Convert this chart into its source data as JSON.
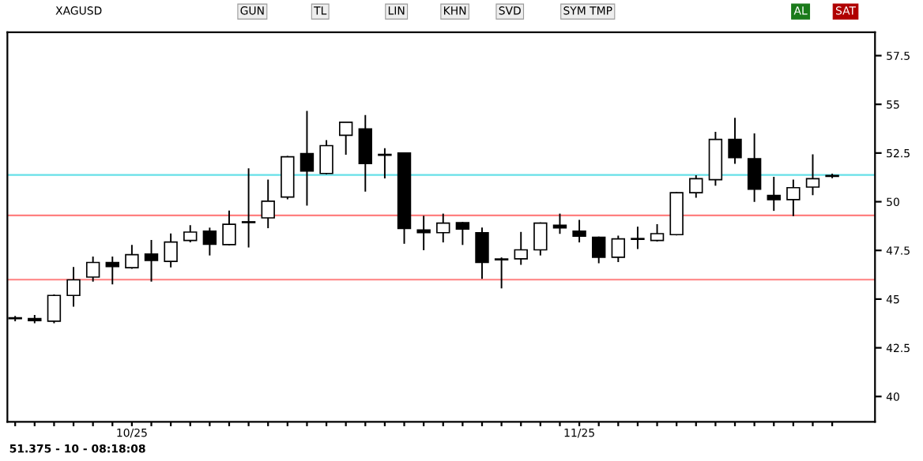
{
  "chart_data": {
    "type": "candlestick",
    "title": "XAGUSD",
    "categories": [
      null,
      null,
      null,
      null,
      null,
      null,
      "10/25",
      null,
      null,
      null,
      null,
      null,
      null,
      null,
      null,
      null,
      null,
      null,
      null,
      null,
      null,
      null,
      null,
      null,
      null,
      null,
      null,
      null,
      null,
      "11/25",
      null,
      null,
      null,
      null,
      null,
      null,
      null,
      null,
      null,
      null,
      null,
      null,
      null
    ],
    "ohlc": [
      [
        44.0,
        44.1,
        43.9,
        44.0
      ],
      [
        44.0,
        44.15,
        43.8,
        43.9
      ],
      [
        43.87,
        45.2,
        43.8,
        45.19
      ],
      [
        45.19,
        46.61,
        44.65,
        45.99
      ],
      [
        46.13,
        47.15,
        45.94,
        46.88
      ],
      [
        46.88,
        47.15,
        45.8,
        46.67
      ],
      [
        46.61,
        47.74,
        46.6,
        47.28
      ],
      [
        47.31,
        48.0,
        45.94,
        46.99
      ],
      [
        46.94,
        48.33,
        46.67,
        47.93
      ],
      [
        48.01,
        48.76,
        47.95,
        48.44
      ],
      [
        48.49,
        48.63,
        47.28,
        47.82
      ],
      [
        47.8,
        49.51,
        47.8,
        48.84
      ],
      [
        48.95,
        51.67,
        47.69,
        48.93
      ],
      [
        49.17,
        51.1,
        48.68,
        50.03
      ],
      [
        50.24,
        52.31,
        50.16,
        52.31
      ],
      [
        52.47,
        54.62,
        49.84,
        51.58
      ],
      [
        51.45,
        53.12,
        51.45,
        52.88
      ],
      [
        53.41,
        54.08,
        52.45,
        54.08
      ],
      [
        53.74,
        54.41,
        50.56,
        51.96
      ],
      [
        52.39,
        52.71,
        51.24,
        52.41
      ],
      [
        52.5,
        52.5,
        47.88,
        48.63
      ],
      [
        48.55,
        49.24,
        47.55,
        48.41
      ],
      [
        48.41,
        49.35,
        47.95,
        48.9
      ],
      [
        48.92,
        48.92,
        47.82,
        48.6
      ],
      [
        48.41,
        48.63,
        46.08,
        46.88
      ],
      [
        47.02,
        47.1,
        45.59,
        47.04
      ],
      [
        47.07,
        48.41,
        46.8,
        47.53
      ],
      [
        47.53,
        48.9,
        47.28,
        48.9
      ],
      [
        48.79,
        49.35,
        48.39,
        48.66
      ],
      [
        48.49,
        49.03,
        47.95,
        48.23
      ],
      [
        48.17,
        48.17,
        46.88,
        47.15
      ],
      [
        47.15,
        48.22,
        46.94,
        48.09
      ],
      [
        48.1,
        48.68,
        47.61,
        48.07
      ],
      [
        48.01,
        48.81,
        48.0,
        48.36
      ],
      [
        48.31,
        50.46,
        48.31,
        50.46
      ],
      [
        50.46,
        51.32,
        50.24,
        51.18
      ],
      [
        51.13,
        53.55,
        50.86,
        53.2
      ],
      [
        53.2,
        54.27,
        51.99,
        52.26
      ],
      [
        52.21,
        53.47,
        50.03,
        50.64
      ],
      [
        50.32,
        51.24,
        49.57,
        50.11
      ],
      [
        50.11,
        51.1,
        49.3,
        50.72
      ],
      [
        50.75,
        52.39,
        50.38,
        51.18
      ],
      [
        51.3,
        51.4,
        51.25,
        51.35
      ]
    ],
    "ylim": [
      38.7,
      58.7
    ],
    "yticks": [
      40,
      42.5,
      45,
      47.5,
      50,
      52.5,
      55,
      57.5
    ],
    "ref_lines": [
      {
        "axis": "y",
        "value": 49.3,
        "color": "#ff8080"
      },
      {
        "axis": "y",
        "value": 46,
        "color": "#ff8080"
      },
      {
        "axis": "y",
        "value": 51.375,
        "color": "#66e0e8"
      }
    ],
    "annotations": [
      "GUN",
      "TL",
      "LIN",
      "KHN",
      "SVD",
      "SYM TMP",
      "AL",
      "SAT",
      "51.375 - 10 - 08:18:08"
    ]
  }
}
